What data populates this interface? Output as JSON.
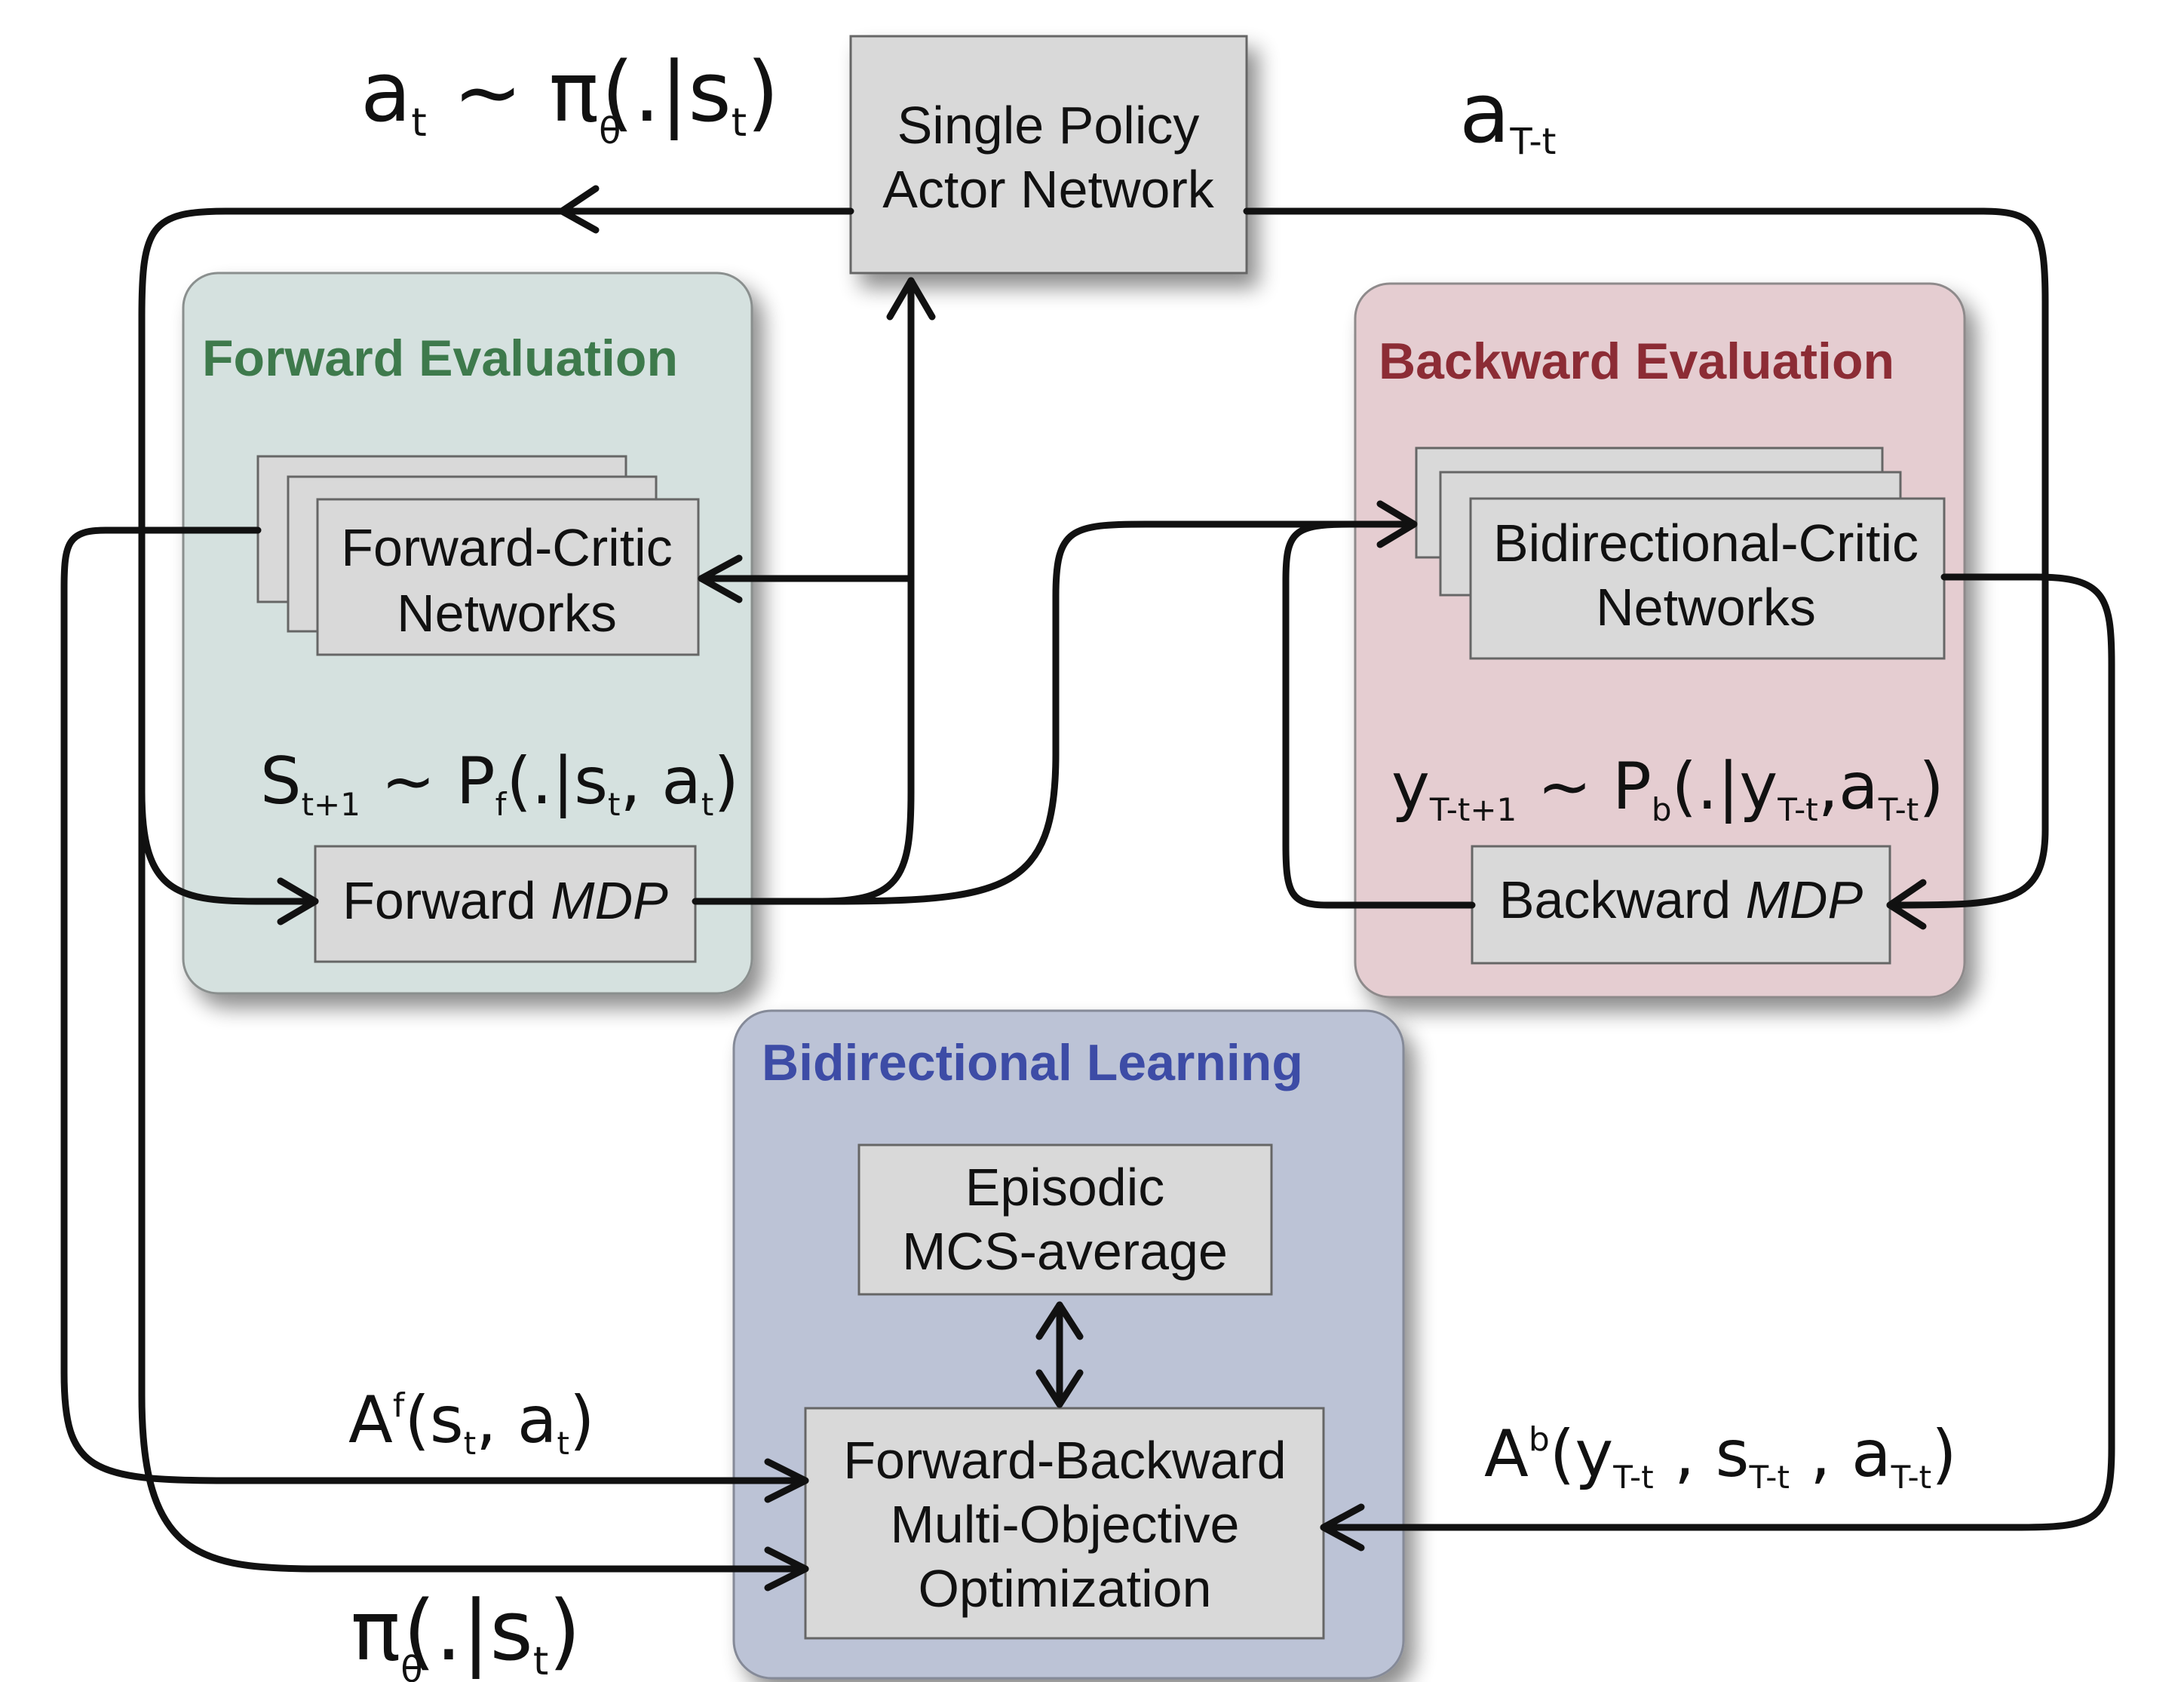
{
  "panels": {
    "forward": {
      "title": "Forward Evaluation",
      "title_color": "#3e7a4c",
      "fill": "#d5e1df"
    },
    "backward": {
      "title": "Backward Evaluation",
      "title_color": "#8c2c35",
      "fill": "#e5cdd1"
    },
    "learning": {
      "title": "Bidirectional Learning",
      "title_color": "#3d4ca6",
      "fill": "#bcc3d6"
    }
  },
  "boxes": {
    "actor": {
      "line1": "Single Policy",
      "line2": "Actor Network"
    },
    "forward_critic": {
      "line1": "Forward-Critic",
      "line2": "Networks"
    },
    "forward_mdp": {
      "text": "Forward ",
      "italic": "MDP"
    },
    "bidir_critic": {
      "line1": "Bidirectional-Critic",
      "line2": "Networks"
    },
    "backward_mdp": {
      "text": "Backward ",
      "italic": "MDP"
    },
    "episodic": {
      "line1": "Episodic",
      "line2": "MCS-average"
    },
    "fbmo": {
      "line1": "Forward-Backward",
      "line2": "Multi-Objective",
      "line3": "Optimization"
    }
  },
  "labels": {
    "at_policy": {
      "a": "a",
      "t1": "t",
      "tilde_pi": " ~ π",
      "theta": "θ",
      "open": "(.|s",
      "t2": "t",
      ")": ")"
    },
    "a_Tt": {
      "a": "a",
      "sub": "T-t"
    },
    "s_next": {
      "s": "S",
      "sub1": "t+1",
      "p": " ~ P",
      "f": "f",
      "open": "(.|s",
      "sub2": "t",
      "mid": ", a",
      "sub3": "t",
      "close": ")"
    },
    "y_next": {
      "y": "y",
      "sub1": "T-t+1",
      "p": " ~ P",
      "b": "b",
      "open": "(.|y",
      "sub2": "T-t",
      "mid": ",a",
      "sub3": "T-t",
      "close": ")"
    },
    "af": {
      "A": "A",
      "sup": "f",
      "open": "(s",
      "sub1": "t",
      "mid": ", a",
      "sub2": "t",
      "close": ")"
    },
    "ab": {
      "A": "A",
      "sup": "b",
      "open": "(y",
      "sub1": "T-t",
      "m1": " , s",
      "sub2": "T-t",
      "m2": " , a",
      "sub3": "T-t",
      "close": ")"
    },
    "pi_bottom": {
      "pi": "π",
      "theta": "θ",
      "open": "(.|s",
      "sub": "t",
      "close": ")"
    }
  },
  "colors": {
    "box_fill": "#d9d9d9",
    "box_stroke": "#555555",
    "arrow": "#111111"
  }
}
